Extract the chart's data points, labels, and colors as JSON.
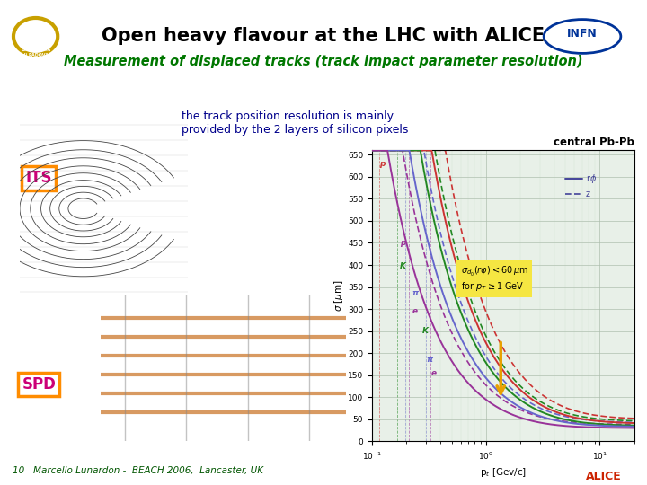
{
  "title": "Open heavy flavour at the LHC with ALICE",
  "subtitle": "Measurement of displaced tracks (track impact parameter resolution)",
  "body_text": "the track position resolution is mainly\nprovided by the 2 layers of silicon pixels",
  "its_label": "ITS",
  "spd_label": "SPD",
  "footer_text": "10   Marcello Lunardon -  BEACH 2006,  Lancaster, UK",
  "chart_title": "central Pb-Pb",
  "xlabel": "p$_t$ [Gev/c]",
  "ylabel": "$\\sigma$ [$\\mu$m]",
  "annotation_line1": "$\\sigma_{d_0}(r\\varphi) < 60\\,\\mu$m",
  "annotation_line2": "for $p_T \\geq 1$ GeV",
  "bg_color": "#ffffff",
  "title_color": "#000000",
  "subtitle_color": "#007700",
  "body_text_color": "#00008B",
  "footer_color": "#005500",
  "plot_bg": "#e8f0e8",
  "curve_colors_rphi": [
    "#cc3333",
    "#228822",
    "#6666cc",
    "#993399"
  ],
  "curve_colors_z": [
    "#cc3333",
    "#228822",
    "#6666cc",
    "#993399"
  ],
  "particle_labels": [
    "p",
    "K",
    "π",
    "e"
  ],
  "particle_colors_rphi": [
    "#cc3333",
    "#228822",
    "#6666cc",
    "#993399"
  ],
  "particle_colors_z": [
    "#cc6633",
    "#55aa44",
    "#8888dd",
    "#bb66bb"
  ],
  "ylim": [
    0,
    660
  ],
  "yticks": [
    0,
    50,
    100,
    150,
    200,
    250,
    300,
    350,
    400,
    450,
    500,
    550,
    600,
    650
  ],
  "ann_bg": "#f5e642",
  "arrow_color": "#e8a000"
}
